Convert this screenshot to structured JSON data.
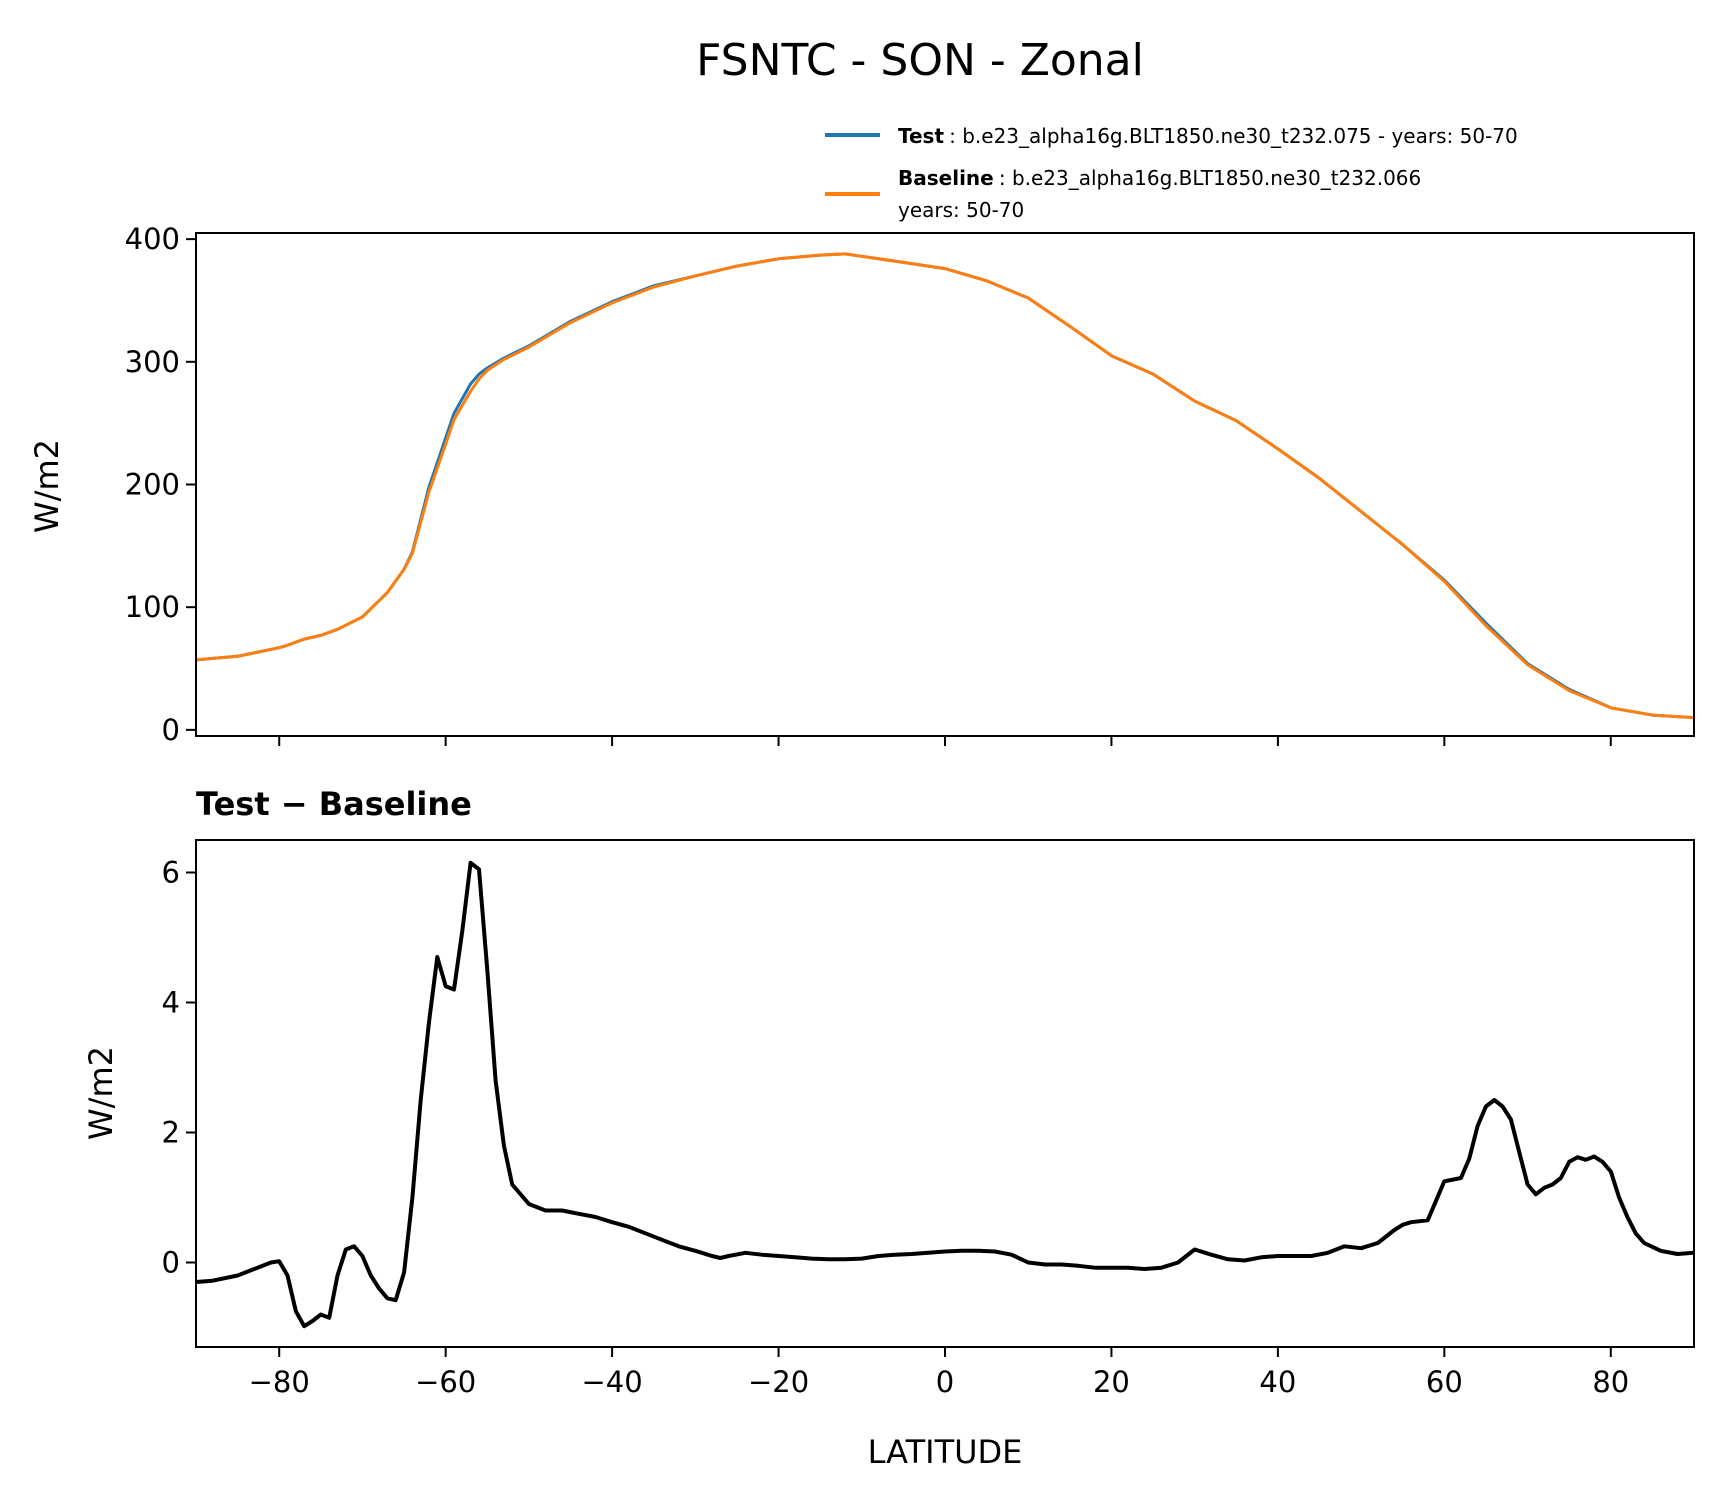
{
  "chart_data": [
    {
      "type": "line",
      "title": "FSNTC - SON - Zonal",
      "xlabel": "",
      "ylabel": "W/m2",
      "xlim": [
        -90,
        90
      ],
      "ylim": [
        -5,
        405
      ],
      "xticks": [
        -80,
        -60,
        -40,
        -20,
        0,
        20,
        40,
        60,
        80
      ],
      "yticks": [
        0,
        100,
        200,
        300,
        400
      ],
      "legend_position": "top-right (above plot)",
      "series": [
        {
          "name": "Test",
          "legend_label": "b.e23_alpha16g.BLT1850.ne30_t232.075 - years: 50-70",
          "color": "#1f77b4",
          "x": [
            -90,
            -85,
            -80,
            -79,
            -77,
            -75,
            -73,
            -70,
            -67,
            -65,
            -64,
            -62,
            -60,
            -59,
            -57,
            -56,
            -55,
            -53,
            -50,
            -45,
            -40,
            -35,
            -30,
            -25,
            -20,
            -15,
            -12,
            -10,
            -5,
            0,
            5,
            10,
            15,
            20,
            25,
            30,
            35,
            40,
            45,
            50,
            55,
            60,
            65,
            70,
            75,
            80,
            85,
            90
          ],
          "y": [
            57,
            60,
            67,
            69,
            74,
            77,
            82,
            92,
            112,
            131,
            145,
            198,
            238,
            258,
            282,
            290,
            295,
            303,
            313,
            333,
            349,
            362,
            370,
            378,
            384,
            387,
            388,
            386,
            381,
            376,
            366,
            352,
            329,
            305,
            290,
            268,
            252,
            229,
            205,
            178,
            151,
            122,
            87,
            54,
            33,
            18,
            12,
            10
          ]
        },
        {
          "name": "Baseline",
          "legend_label": "b.e23_alpha16g.BLT1850.ne30_t232.066",
          "legend_label_line2": "years: 50-70",
          "color": "#ff7f0e",
          "x": [
            -90,
            -85,
            -80,
            -79,
            -77,
            -75,
            -73,
            -70,
            -67,
            -65,
            -64,
            -62,
            -60,
            -59,
            -57,
            -56,
            -55,
            -53,
            -50,
            -45,
            -40,
            -35,
            -30,
            -25,
            -20,
            -15,
            -12,
            -10,
            -5,
            0,
            5,
            10,
            15,
            20,
            25,
            30,
            35,
            40,
            45,
            50,
            55,
            60,
            65,
            70,
            75,
            80,
            85,
            90
          ],
          "y": [
            57,
            60,
            67,
            69,
            74,
            77,
            82,
            92,
            112,
            131,
            144,
            194,
            233,
            253,
            276,
            286,
            293,
            302,
            312,
            332,
            348,
            361,
            370,
            378,
            384,
            387,
            388,
            386,
            381,
            376,
            366,
            352,
            329,
            305,
            290,
            268,
            252,
            229,
            205,
            178,
            151,
            121,
            85,
            53,
            32,
            18,
            12,
            10
          ]
        }
      ]
    },
    {
      "type": "line",
      "title": "Test − Baseline",
      "xlabel": "LATITUDE",
      "ylabel": "W/m2",
      "xlim": [
        -90,
        90
      ],
      "ylim": [
        -1.3,
        6.5
      ],
      "xticks": [
        -80,
        -60,
        -40,
        -20,
        0,
        20,
        40,
        60,
        80
      ],
      "yticks": [
        0,
        2,
        4,
        6
      ],
      "series": [
        {
          "name": "Test − Baseline",
          "color": "#000000",
          "x": [
            -90,
            -88,
            -85,
            -83,
            -81,
            -80,
            -79,
            -78,
            -77,
            -76,
            -75,
            -74,
            -73,
            -72,
            -71,
            -70,
            -69,
            -68,
            -67,
            -66,
            -65,
            -64,
            -63,
            -62,
            -61,
            -60,
            -59,
            -58,
            -57,
            -56,
            -55,
            -54,
            -53,
            -52,
            -50,
            -48,
            -46,
            -44,
            -42,
            -40,
            -38,
            -36,
            -34,
            -32,
            -30,
            -28,
            -27,
            -26,
            -24,
            -22,
            -20,
            -18,
            -16,
            -14,
            -12,
            -10,
            -8,
            -6,
            -4,
            -2,
            0,
            2,
            4,
            6,
            8,
            10,
            12,
            14,
            16,
            18,
            20,
            22,
            24,
            26,
            28,
            30,
            32,
            34,
            36,
            38,
            40,
            42,
            44,
            46,
            48,
            50,
            52,
            54,
            55,
            56,
            58,
            60,
            62,
            63,
            64,
            65,
            66,
            67,
            68,
            69,
            70,
            71,
            72,
            73,
            74,
            75,
            76,
            77,
            78,
            79,
            80,
            81,
            82,
            83,
            84,
            86,
            88,
            90
          ],
          "y": [
            -0.3,
            -0.28,
            -0.2,
            -0.1,
            0.0,
            0.02,
            -0.2,
            -0.75,
            -0.98,
            -0.9,
            -0.8,
            -0.85,
            -0.2,
            0.2,
            0.25,
            0.1,
            -0.2,
            -0.4,
            -0.55,
            -0.58,
            -0.15,
            1.0,
            2.5,
            3.7,
            4.7,
            4.25,
            4.2,
            5.1,
            6.15,
            6.05,
            4.5,
            2.8,
            1.8,
            1.2,
            0.9,
            0.8,
            0.8,
            0.75,
            0.7,
            0.62,
            0.55,
            0.45,
            0.35,
            0.25,
            0.18,
            0.1,
            0.07,
            0.1,
            0.15,
            0.12,
            0.1,
            0.08,
            0.06,
            0.05,
            0.05,
            0.06,
            0.1,
            0.12,
            0.13,
            0.15,
            0.17,
            0.18,
            0.18,
            0.17,
            0.12,
            0.0,
            -0.03,
            -0.03,
            -0.05,
            -0.08,
            -0.08,
            -0.08,
            -0.1,
            -0.08,
            0.0,
            0.2,
            0.12,
            0.05,
            0.03,
            0.08,
            0.1,
            0.1,
            0.1,
            0.15,
            0.25,
            0.22,
            0.3,
            0.5,
            0.58,
            0.62,
            0.65,
            1.25,
            1.3,
            1.6,
            2.1,
            2.4,
            2.5,
            2.4,
            2.2,
            1.7,
            1.2,
            1.05,
            1.15,
            1.2,
            1.3,
            1.55,
            1.62,
            1.58,
            1.63,
            1.55,
            1.4,
            1.0,
            0.7,
            0.45,
            0.3,
            0.18,
            0.13,
            0.15
          ]
        }
      ]
    }
  ],
  "figure": {
    "title": "FSNTC - SON - Zonal",
    "legend": {
      "test_name": "Test",
      "test_label": "b.e23_alpha16g.BLT1850.ne30_t232.075 - years: 50-70",
      "baseline_name": "Baseline",
      "baseline_label": "b.e23_alpha16g.BLT1850.ne30_t232.066",
      "baseline_label_line2": "years: 50-70"
    },
    "top_ylabel": "W/m2",
    "bottom_title_part1": "Test",
    "bottom_title_part2": "Baseline",
    "bottom_ylabel": "W/m2",
    "xlabel": "LATITUDE"
  }
}
